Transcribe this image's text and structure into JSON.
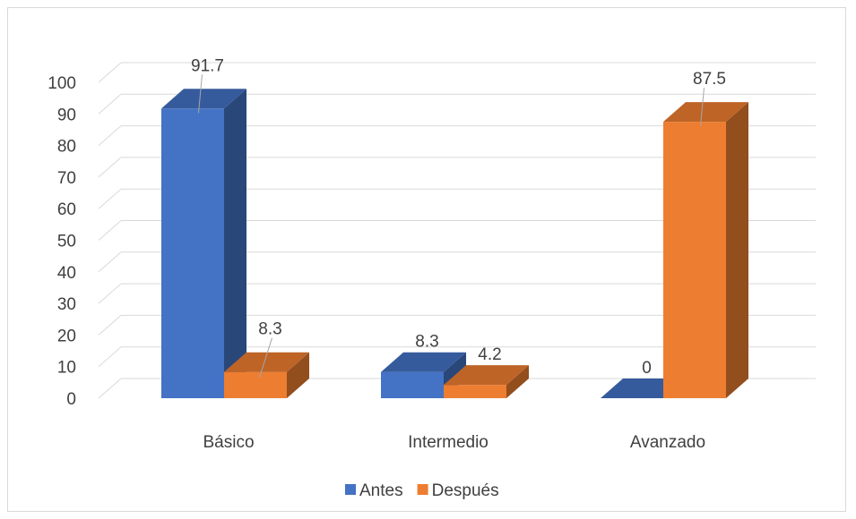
{
  "chart_data": {
    "type": "bar",
    "categories": [
      "Básico",
      "Intermedio",
      "Avanzado"
    ],
    "series": [
      {
        "name": "Antes",
        "values": [
          91.7,
          8.3,
          0
        ],
        "color": "#4472c4"
      },
      {
        "name": "Después",
        "values": [
          8.3,
          4.2,
          87.5
        ],
        "color": "#ed7d31"
      }
    ],
    "ylim": [
      0,
      100
    ],
    "yticks": [
      0,
      10,
      20,
      30,
      40,
      50,
      60,
      70,
      80,
      90,
      100
    ],
    "grid": true,
    "legend_position": "bottom",
    "style": "3d-clustered-column"
  }
}
